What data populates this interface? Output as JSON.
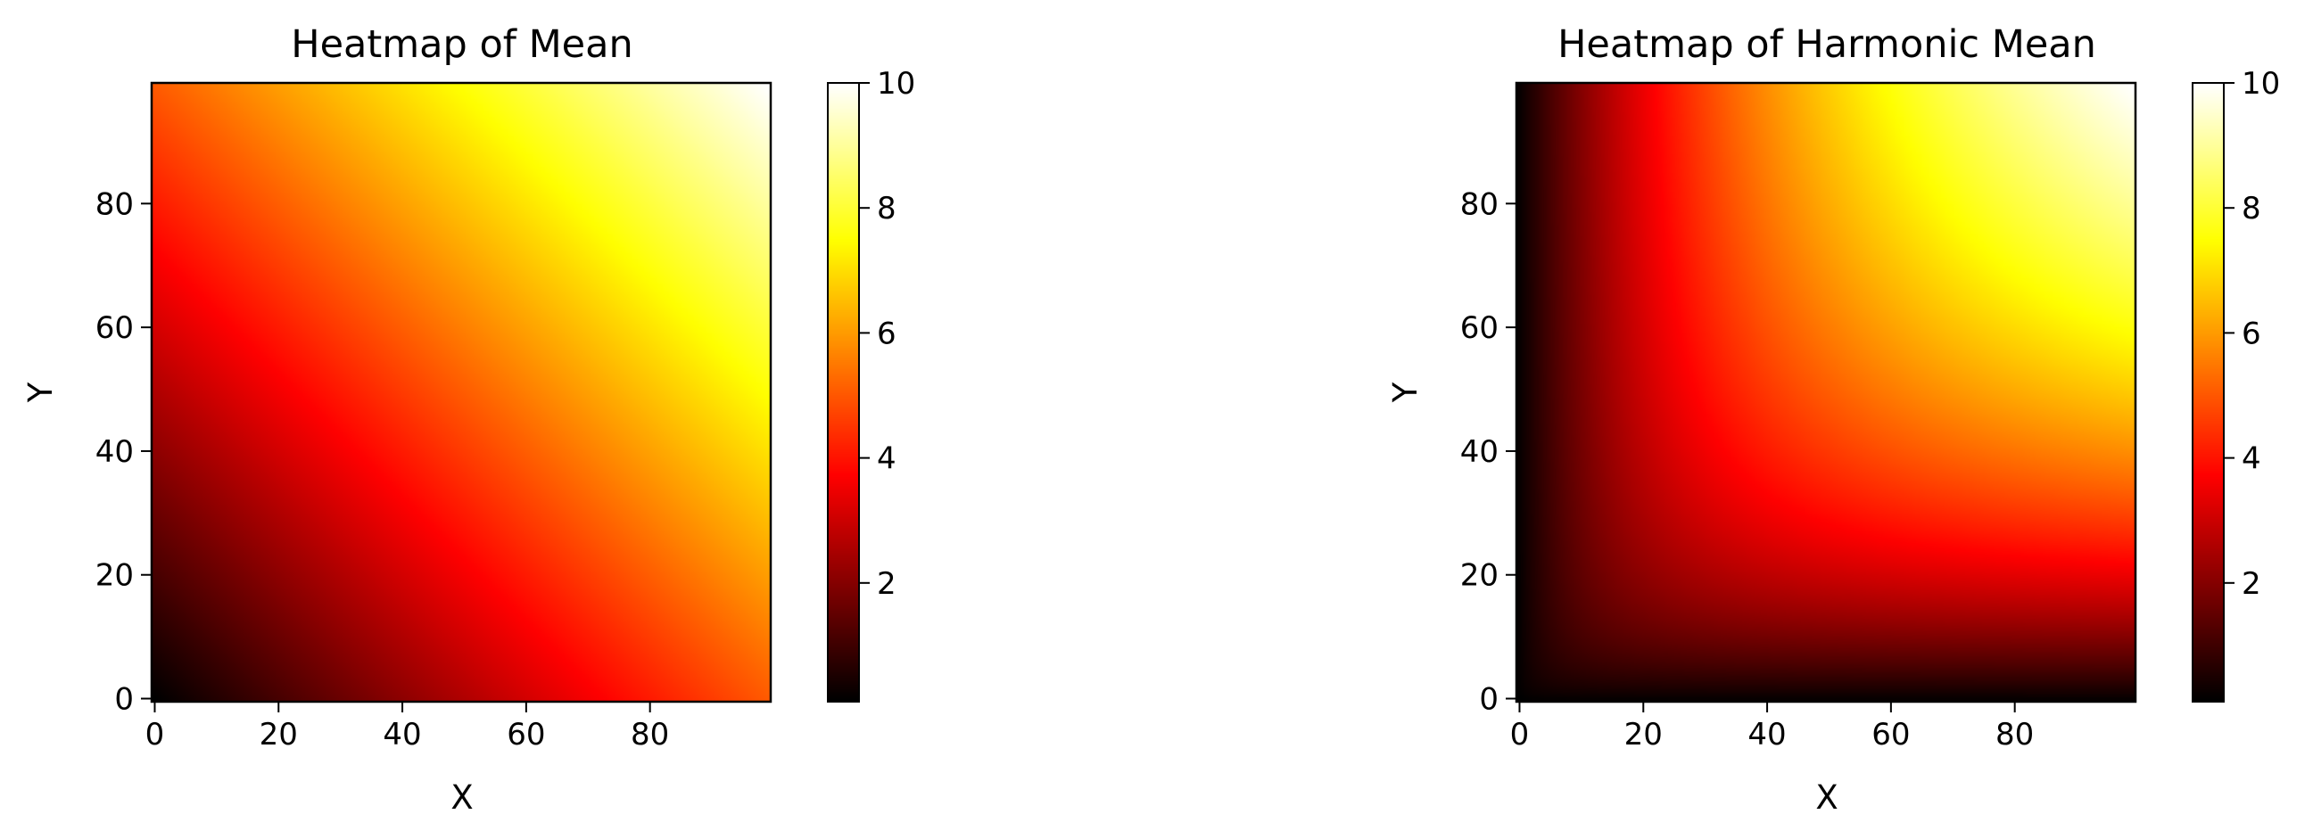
{
  "chart_data": [
    {
      "type": "heatmap",
      "title": "Heatmap of Mean",
      "xlabel": "X",
      "ylabel": "Y",
      "function": "mean",
      "colormap": "hot",
      "grid_size": [
        100,
        100
      ],
      "x_range": [
        0,
        99
      ],
      "y_range": [
        0,
        99
      ],
      "origin": "lower",
      "value_formula": "z = (a + b) / 2, with a = 0.1 + 9.9*x/99 and b = 0.1 + 9.9*y/99",
      "value_range": [
        0.1,
        10
      ],
      "x_ticks": [
        "0",
        "20",
        "40",
        "60",
        "80"
      ],
      "y_ticks": [
        "0",
        "20",
        "40",
        "60",
        "80"
      ],
      "colorbar": {
        "ticks": [
          "2",
          "4",
          "6",
          "8",
          "10"
        ],
        "range": [
          0.1,
          10
        ]
      }
    },
    {
      "type": "heatmap",
      "title": "Heatmap of Harmonic Mean",
      "xlabel": "X",
      "ylabel": "Y",
      "function": "harmonic_mean",
      "colormap": "hot",
      "grid_size": [
        100,
        100
      ],
      "x_range": [
        0,
        99
      ],
      "y_range": [
        0,
        99
      ],
      "origin": "lower",
      "value_formula": "z = 2ab / (a + b), with a = 0.1 + 9.9*x/99 and b = 0.1 + 9.9*y/99",
      "value_range": [
        0.1,
        10
      ],
      "x_ticks": [
        "0",
        "20",
        "40",
        "60",
        "80"
      ],
      "y_ticks": [
        "0",
        "20",
        "40",
        "60",
        "80"
      ],
      "colorbar": {
        "ticks": [
          "2",
          "4",
          "6",
          "8",
          "10"
        ],
        "range": [
          0.1,
          10
        ]
      }
    }
  ]
}
